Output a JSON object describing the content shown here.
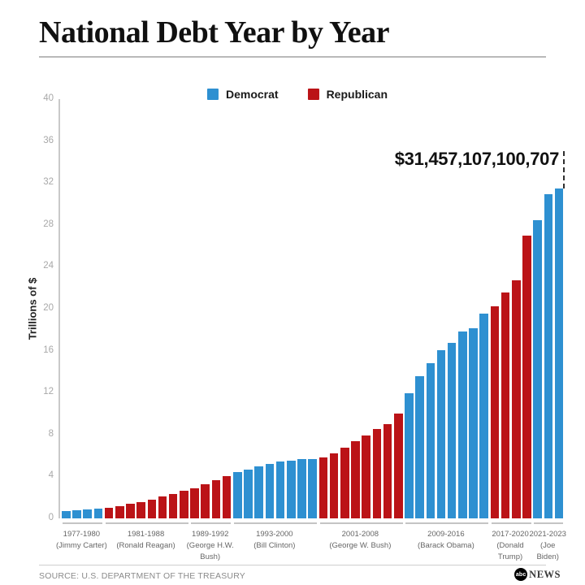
{
  "header": {
    "title": "National Debt Year by Year"
  },
  "legend": {
    "democrat": {
      "label": "Democrat",
      "color": "#2e90d1"
    },
    "republican": {
      "label": "Republican",
      "color": "#bb1317"
    }
  },
  "chart_data": {
    "type": "bar",
    "title": "National Debt Year by Year",
    "ylabel": "Trillions of $",
    "ylim": [
      0,
      40
    ],
    "yticks": [
      0,
      4,
      8,
      12,
      16,
      20,
      24,
      28,
      32,
      36,
      40
    ],
    "grid": false,
    "legend_position": "top-center",
    "unit": "trillions of US dollars",
    "years": [
      1977,
      1978,
      1979,
      1980,
      1981,
      1982,
      1983,
      1984,
      1985,
      1986,
      1987,
      1988,
      1989,
      1990,
      1991,
      1992,
      1993,
      1994,
      1995,
      1996,
      1997,
      1998,
      1999,
      2000,
      2001,
      2002,
      2003,
      2004,
      2005,
      2006,
      2007,
      2008,
      2009,
      2010,
      2011,
      2012,
      2013,
      2014,
      2015,
      2016,
      2017,
      2018,
      2019,
      2020,
      2021,
      2022,
      2023
    ],
    "values": [
      0.7,
      0.77,
      0.83,
      0.91,
      1.0,
      1.14,
      1.38,
      1.57,
      1.82,
      2.13,
      2.35,
      2.6,
      2.86,
      3.23,
      3.67,
      4.06,
      4.41,
      4.69,
      4.97,
      5.22,
      5.41,
      5.53,
      5.66,
      5.67,
      5.81,
      6.23,
      6.78,
      7.38,
      7.93,
      8.51,
      9.01,
      10.02,
      11.91,
      13.56,
      14.79,
      16.07,
      16.74,
      17.82,
      18.15,
      19.57,
      20.24,
      21.52,
      22.72,
      26.95,
      28.43,
      30.93,
      31.46
    ],
    "parties": [
      "D",
      "D",
      "D",
      "D",
      "R",
      "R",
      "R",
      "R",
      "R",
      "R",
      "R",
      "R",
      "R",
      "R",
      "R",
      "R",
      "D",
      "D",
      "D",
      "D",
      "D",
      "D",
      "D",
      "D",
      "R",
      "R",
      "R",
      "R",
      "R",
      "R",
      "R",
      "R",
      "D",
      "D",
      "D",
      "D",
      "D",
      "D",
      "D",
      "D",
      "R",
      "R",
      "R",
      "R",
      "D",
      "D",
      "D"
    ],
    "party_colors": {
      "D": "#2e90d1",
      "R": "#bb1317"
    },
    "groups": [
      {
        "years": "1977-1980",
        "president": "(Jimmy Carter)",
        "party": "D",
        "start": 0,
        "count": 4,
        "label_lines": [
          "1977-1980",
          "(Jimmy Carter)"
        ]
      },
      {
        "years": "1981-1988",
        "president": "(Ronald Reagan)",
        "party": "R",
        "start": 4,
        "count": 8,
        "label_lines": [
          "1981-1988",
          "(Ronald Reagan)"
        ]
      },
      {
        "years": "1989-1992",
        "president": "(George H.W. Bush)",
        "party": "R",
        "start": 12,
        "count": 4,
        "label_lines": [
          "1989-1992",
          "(George H.W.",
          "Bush)"
        ]
      },
      {
        "years": "1993-2000",
        "president": "(Bill Clinton)",
        "party": "D",
        "start": 16,
        "count": 8,
        "label_lines": [
          "1993-2000",
          "(Bill Clinton)"
        ]
      },
      {
        "years": "2001-2008",
        "president": "(George W. Bush)",
        "party": "R",
        "start": 24,
        "count": 8,
        "label_lines": [
          "2001-2008",
          "(George W. Bush)"
        ]
      },
      {
        "years": "2009-2016",
        "president": "(Barack Obama)",
        "party": "D",
        "start": 32,
        "count": 8,
        "label_lines": [
          "2009-2016",
          "(Barack Obama)"
        ]
      },
      {
        "years": "2017-2020",
        "president": "(Donald Trump)",
        "party": "R",
        "start": 40,
        "count": 4,
        "label_lines": [
          "2017-2020",
          "(Donald",
          "Trump)"
        ]
      },
      {
        "years": "2021-2023",
        "president": "(Joe Biden)",
        "party": "D",
        "start": 44,
        "count": 3,
        "label_lines": [
          "2021-2023",
          "(Joe",
          "Biden)"
        ]
      }
    ],
    "callout": {
      "text": "$31,457,107,100,707",
      "year": 2023
    }
  },
  "footer": {
    "source": "SOURCE: U.S. DEPARTMENT OF THE TREASURY",
    "logo": {
      "abc": "abc",
      "news": "NEWS"
    }
  }
}
